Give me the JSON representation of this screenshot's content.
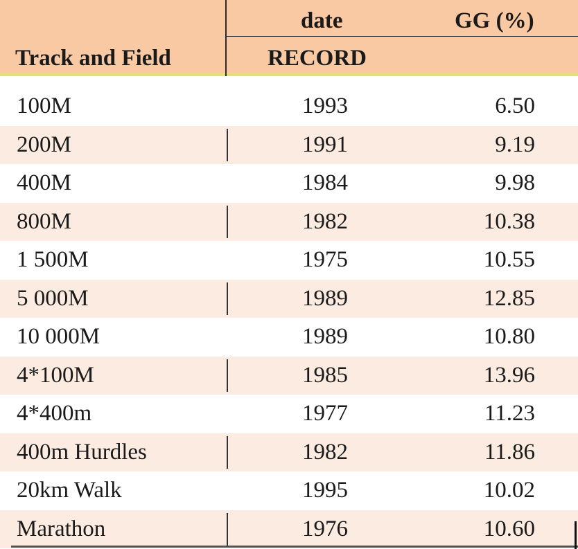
{
  "header": {
    "col_event": "Track and Field",
    "col_date_top": "date",
    "col_date_bottom": "RECORD",
    "col_gg": "GG (%)"
  },
  "rows": [
    {
      "event": "100M",
      "date": "1993",
      "gg": "6.50"
    },
    {
      "event": "200M",
      "date": "1991",
      "gg": "9.19"
    },
    {
      "event": "400M",
      "date": "1984",
      "gg": "9.98"
    },
    {
      "event": "800M",
      "date": "1982",
      "gg": "10.38"
    },
    {
      "event": "1 500M",
      "date": "1975",
      "gg": "10.55"
    },
    {
      "event": "5 000M",
      "date": "1989",
      "gg": "12.85"
    },
    {
      "event": "10 000M",
      "date": "1989",
      "gg": "10.80"
    },
    {
      "event": "4*100M",
      "date": "1985",
      "gg": "13.96"
    },
    {
      "event": "4*400m",
      "date": "1977",
      "gg": "11.23"
    },
    {
      "event": "400m Hurdles",
      "date": "1982",
      "gg": "11.86"
    },
    {
      "event": "20km Walk",
      "date": "1995",
      "gg": "10.02"
    },
    {
      "event": "Marathon",
      "date": "1976",
      "gg": "10.60"
    }
  ],
  "colors": {
    "header_bg": "#f8c9a3",
    "header_border": "#e3e27a",
    "alt_row_bg": "#fcebe0"
  }
}
